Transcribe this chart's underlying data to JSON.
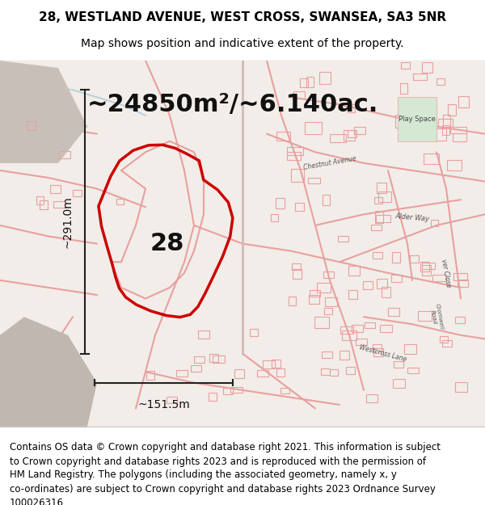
{
  "title_line1": "28, WESTLAND AVENUE, WEST CROSS, SWANSEA, SA3 5NR",
  "title_line2": "Map shows position and indicative extent of the property.",
  "area_text": "~24850m²/~6.140ac.",
  "label_28": "28",
  "dim_height": "~291.0m",
  "dim_width": "~151.5m",
  "footer_text": "Contains OS data © Crown copyright and database right 2021. This information is subject\nto Crown copyright and database rights 2023 and is reproduced with the permission of\nHM Land Registry. The polygons (including the associated geometry, namely x, y\nco-ordinates) are subject to Crown copyright and database rights 2023 Ordnance Survey\n100026316.",
  "bg_color": "#f5f0eb",
  "title_bg": "#ffffff",
  "footer_bg": "#ffffff",
  "map_bg": "#f8f5f2",
  "fig_width": 6.0,
  "fig_height": 6.25,
  "dpi": 100,
  "title_fontsize": 11,
  "subtitle_fontsize": 10,
  "area_fontsize": 22,
  "label_fontsize": 22,
  "dim_fontsize": 10,
  "footer_fontsize": 8.5,
  "property_poly_color": "#cc0000",
  "road_color": "#e8a0a0",
  "building_color": "#e8a0a0",
  "green_area_color": "#d4e8d4",
  "dim_line_color": "#222222",
  "title_border_color": "#cccccc",
  "footer_border_color": "#cccccc"
}
